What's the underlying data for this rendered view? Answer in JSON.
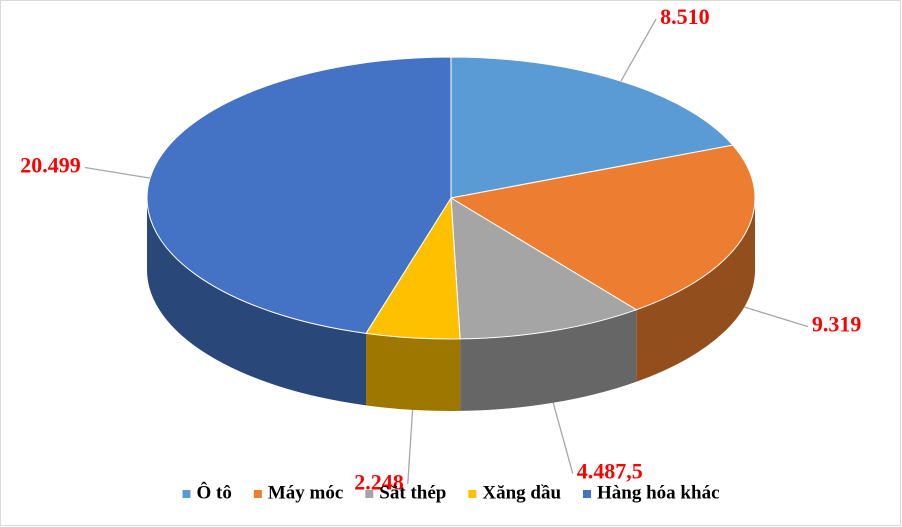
{
  "chart_data": {
    "type": "pie",
    "categories": [
      "Ô tô",
      "Máy móc",
      "Sắt thép",
      "Xăng dầu",
      "Hàng hóa khác"
    ],
    "values": [
      8510,
      9319,
      4487.5,
      2248,
      20499
    ],
    "value_labels": [
      "8.510",
      "9.319",
      "4.487,5",
      "2.248",
      "20.499"
    ],
    "colors": [
      "#5b9bd5",
      "#ed7d31",
      "#a5a5a5",
      "#ffc000",
      "#4472c4"
    ],
    "legend": "bottom"
  }
}
